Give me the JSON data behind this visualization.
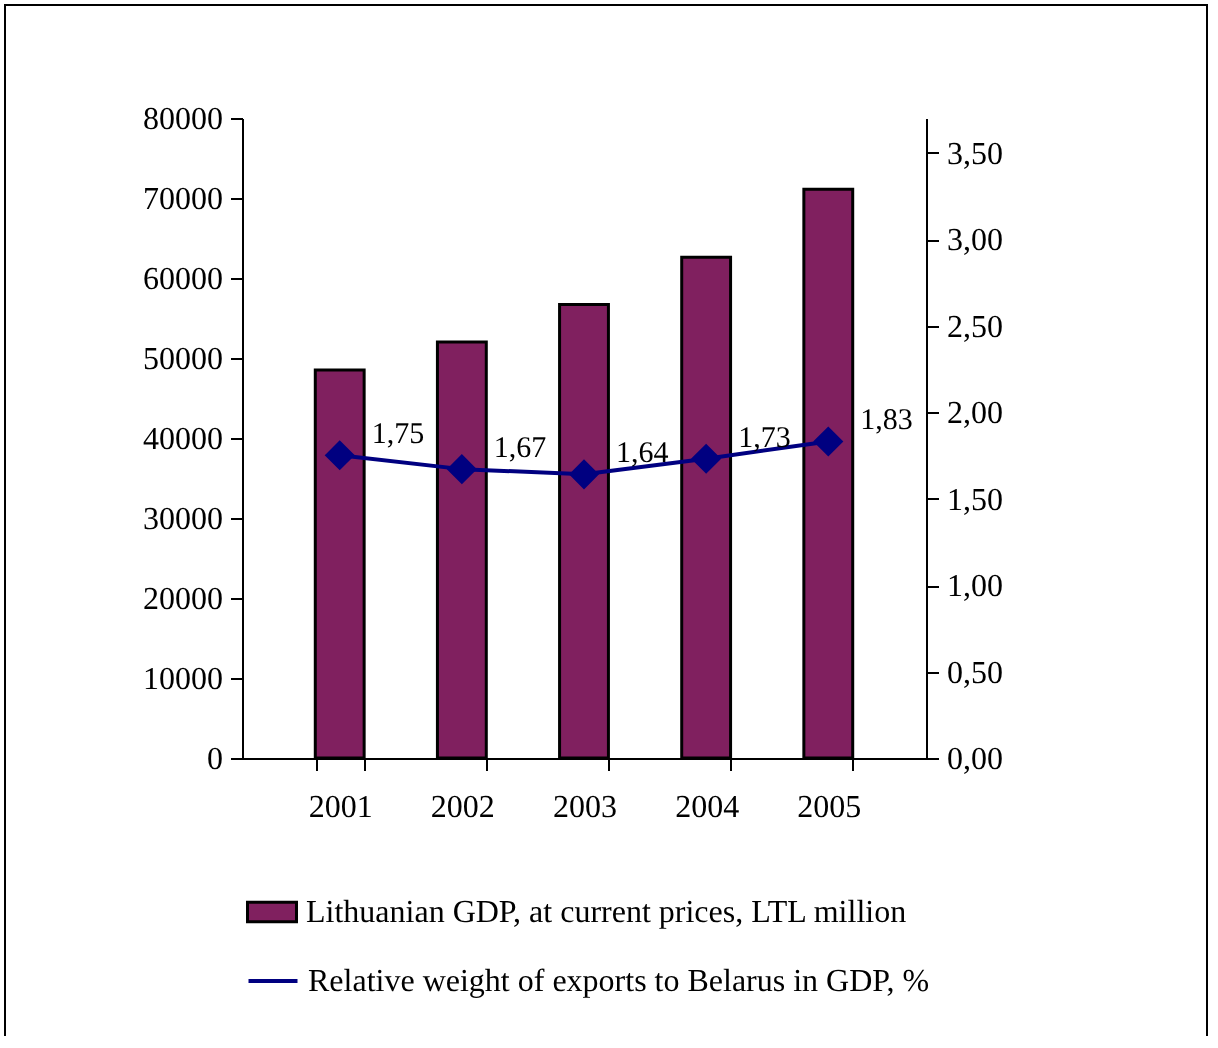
{
  "chart_data": {
    "type": "bar",
    "categories": [
      "2001",
      "2002",
      "2003",
      "2004",
      "2005"
    ],
    "series": [
      {
        "name": "Lithuanian GDP, at current prices, LTL million",
        "color": "#80205f",
        "values": [
          48500,
          52000,
          56700,
          62600,
          71100
        ]
      },
      {
        "name": "Relative weight of exports to Belarus in GDP, %",
        "type": "line",
        "axis": "y2",
        "color": "#000080",
        "values": [
          1.75,
          1.67,
          1.64,
          1.73,
          1.83
        ],
        "value_labels": [
          "1,75",
          "1,67",
          "1,64",
          "1,73",
          "1,83"
        ]
      }
    ],
    "ylim": [
      0,
      80000
    ],
    "yticks": [
      0,
      10000,
      20000,
      30000,
      40000,
      50000,
      60000,
      70000,
      80000
    ],
    "y2lim": [
      0,
      3.7
    ],
    "y2ticks": [
      {
        "value": 0,
        "label": "0,00"
      },
      {
        "value": 0.5,
        "label": "0,50"
      },
      {
        "value": 1,
        "label": "1,00"
      },
      {
        "value": 1.5,
        "label": "1,50"
      },
      {
        "value": 2,
        "label": "2,00"
      },
      {
        "value": 2.5,
        "label": "2,50"
      },
      {
        "value": 3,
        "label": "3,00"
      },
      {
        "value": 3.5,
        "label": "3,50"
      }
    ],
    "grid": false,
    "legend": "bottom",
    "marker": "diamond",
    "line_style": "solid"
  }
}
